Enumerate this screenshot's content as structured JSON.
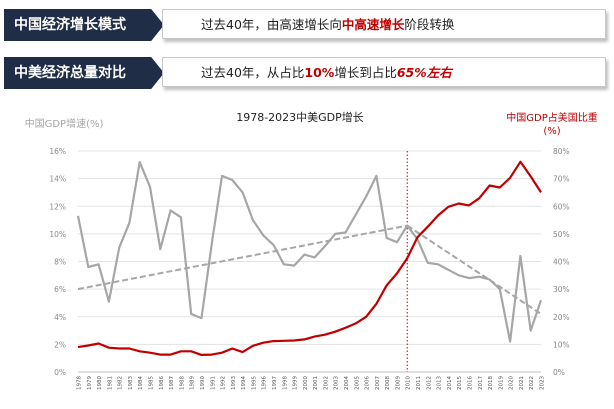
{
  "banners": [
    {
      "tag": "中国经济增长模式",
      "parts": [
        {
          "text": "过去40年，由高速增长向",
          "style": "normal"
        },
        {
          "text": "中高速增长",
          "style": "hl"
        },
        {
          "text": "阶段转换",
          "style": "normal"
        }
      ]
    },
    {
      "tag": "中美经济总量对比",
      "parts": [
        {
          "text": "过去40年，从占比",
          "style": "normal"
        },
        {
          "text": "10%",
          "style": "hl"
        },
        {
          "text": "增长到占比",
          "style": "normal"
        },
        {
          "text": "65%左右",
          "style": "hl-i"
        }
      ]
    }
  ],
  "chart_data": {
    "type": "line",
    "title": "1978-2023中美GDP增长",
    "ylabel_left": "中国GDP增速(%)",
    "ylabel_right": "中国GDP占美国比重 (%)",
    "x": [
      1978,
      1979,
      1980,
      1981,
      1982,
      1983,
      1984,
      1985,
      1986,
      1987,
      1988,
      1989,
      1990,
      1991,
      1992,
      1993,
      1994,
      1995,
      1996,
      1997,
      1998,
      1999,
      2000,
      2001,
      2002,
      2003,
      2004,
      2005,
      2006,
      2007,
      2008,
      2009,
      2010,
      2011,
      2012,
      2013,
      2014,
      2015,
      2016,
      2017,
      2018,
      2019,
      2020,
      2021,
      2022,
      2023
    ],
    "x_tick_labels": [
      "1978",
      "1979",
      "1980",
      "1981",
      "1982",
      "1983",
      "1984",
      "1985",
      "1986",
      "1987",
      "1988",
      "1989",
      "1990",
      "1991",
      "1992",
      "1993",
      "1994",
      "1995",
      "1996",
      "1997",
      "1998",
      "1999",
      "2000",
      "2001",
      "2002",
      "2003",
      "2004",
      "2005",
      "2006",
      "2007",
      "2008",
      "2009",
      "2010",
      "2011",
      "2012",
      "2013",
      "2014",
      "2015",
      "2016",
      "2017",
      "2018",
      "2019",
      "2020",
      "2021",
      "2022",
      "2023"
    ],
    "ylim_left": [
      0,
      16
    ],
    "yticks_left": [
      "0%",
      "2%",
      "4%",
      "6%",
      "8%",
      "10%",
      "12%",
      "14%",
      "16%"
    ],
    "ylim_right": [
      0,
      80
    ],
    "yticks_right": [
      "0%",
      "10%",
      "20%",
      "30%",
      "40%",
      "50%",
      "60%",
      "70%",
      "80%"
    ],
    "series": [
      {
        "axis": "left",
        "color": "#a6a6a6",
        "values": [
          11.3,
          7.6,
          7.8,
          5.1,
          9.0,
          10.8,
          15.2,
          13.4,
          8.9,
          11.7,
          11.2,
          4.2,
          3.9,
          9.3,
          14.2,
          13.9,
          13.0,
          11.0,
          9.9,
          9.2,
          7.8,
          7.7,
          8.5,
          8.3,
          9.1,
          10.0,
          10.1,
          11.4,
          12.7,
          14.2,
          9.7,
          9.4,
          10.6,
          9.6,
          7.9,
          7.8,
          7.4,
          7.0,
          6.8,
          6.9,
          6.7,
          6.0,
          2.2,
          8.4,
          3.0,
          5.2
        ]
      },
      {
        "axis": "right",
        "color": "#c00000",
        "values": [
          9.0,
          9.6,
          10.3,
          8.8,
          8.5,
          8.5,
          7.5,
          7.0,
          6.3,
          6.3,
          7.5,
          7.5,
          6.2,
          6.3,
          7.0,
          8.5,
          7.2,
          9.5,
          10.6,
          11.2,
          11.3,
          11.4,
          11.8,
          12.8,
          13.5,
          14.6,
          16.0,
          17.6,
          20.0,
          24.7,
          31.4,
          35.7,
          41.2,
          48.8,
          52.6,
          56.7,
          59.8,
          61.0,
          60.3,
          62.9,
          67.5,
          66.8,
          70.3,
          76.1,
          70.8,
          65.0
        ]
      }
    ],
    "trend_lines": [
      {
        "axis": "left",
        "color": "#a6a6a6",
        "style": "dashed",
        "from": [
          1978,
          6.0
        ],
        "to": [
          2010,
          10.6
        ]
      },
      {
        "axis": "left",
        "color": "#a6a6a6",
        "style": "dashed",
        "from": [
          2010,
          10.6
        ],
        "to": [
          2023,
          4.2
        ]
      }
    ],
    "vline": {
      "x": 2010,
      "color": "#c00000",
      "style": "dotted"
    },
    "grid": "horizontal"
  }
}
